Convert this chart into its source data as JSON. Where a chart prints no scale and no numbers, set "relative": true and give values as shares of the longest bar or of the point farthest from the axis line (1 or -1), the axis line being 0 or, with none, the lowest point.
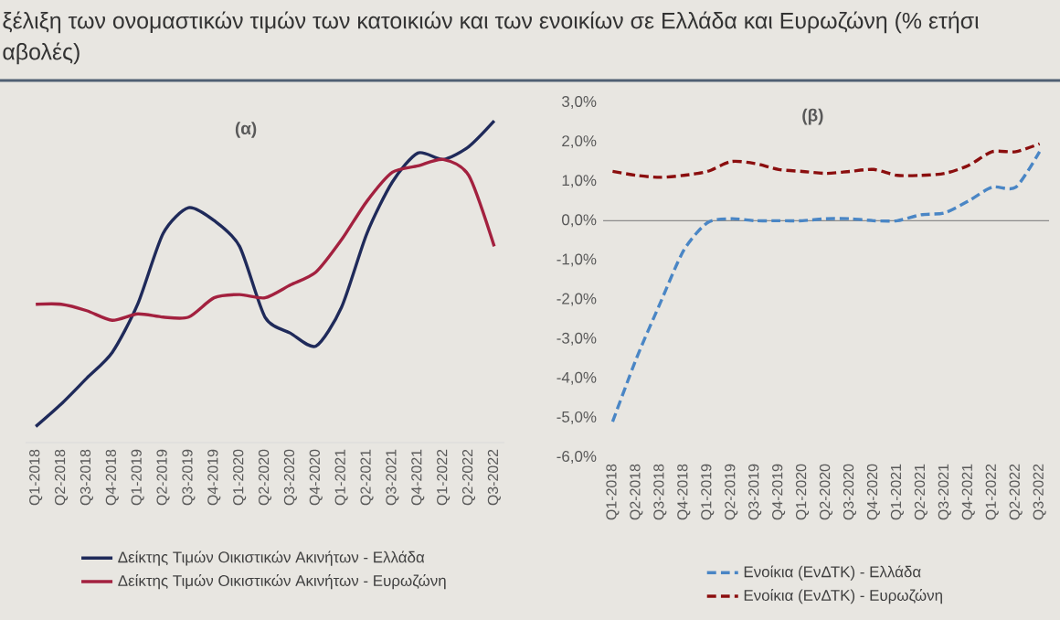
{
  "chart_data": [
    {
      "type": "line",
      "title": "ξέλιξη των ονομαστικών τιμών των κατοικιών και των ενοικίων σε Ελλάδα και Ευρωζώνη (% ετήσι",
      "subtitle": "αβολές)",
      "annotations": [
        "(α)"
      ],
      "relative": true,
      "tick_labels": "x",
      "legend": "bottom",
      "categories": [
        "Q1-2018",
        "Q2-2018",
        "Q3-2018",
        "Q4-2018",
        "Q1-2019",
        "Q2-2019",
        "Q3-2019",
        "Q4-2019",
        "Q1-2020",
        "Q2-2020",
        "Q3-2020",
        "Q4-2020",
        "Q1-2021",
        "Q2-2021",
        "Q3-2021",
        "Q4-2021",
        "Q1-2022",
        "Q2-2022",
        "Q3-2022"
      ],
      "series": [
        {
          "name": "Δείκτης Τιμών Οικιστικών Ακινήτων - Ελλάδα",
          "color": "#1f2a5a",
          "line_style": "solid",
          "values": [
            0.05,
            0.12,
            0.2,
            0.28,
            0.43,
            0.65,
            0.73,
            0.69,
            0.61,
            0.39,
            0.34,
            0.3,
            0.42,
            0.65,
            0.81,
            0.9,
            0.88,
            0.92,
            1.0
          ]
        },
        {
          "name": "Δείκτης Τιμών Οικιστικών Ακινήτων - Ευρωζώνη",
          "color": "#a3213f",
          "line_style": "solid",
          "values": [
            0.43,
            0.43,
            0.41,
            0.38,
            0.4,
            0.39,
            0.39,
            0.45,
            0.46,
            0.45,
            0.49,
            0.53,
            0.63,
            0.75,
            0.84,
            0.86,
            0.88,
            0.83,
            0.61
          ]
        }
      ]
    },
    {
      "type": "line",
      "title": "(β)",
      "legend": "bottom",
      "ylim": [
        -6,
        3
      ],
      "yticks": [
        {
          "value": -6,
          "label": "-6,0%"
        },
        {
          "value": -5,
          "label": "-5,0%"
        },
        {
          "value": -4,
          "label": "-4,0%"
        },
        {
          "value": -3,
          "label": "-3,0%"
        },
        {
          "value": -2,
          "label": "-2,0%"
        },
        {
          "value": -1,
          "label": "-1,0%"
        },
        {
          "value": 0,
          "label": "0,0%"
        },
        {
          "value": 1,
          "label": "1,0%"
        },
        {
          "value": 2,
          "label": "2,0%"
        },
        {
          "value": 3,
          "label": "3,0%"
        }
      ],
      "categories": [
        "Q1-2018",
        "Q2-2018",
        "Q3-2018",
        "Q4-2018",
        "Q1-2019",
        "Q2-2019",
        "Q3-2019",
        "Q4-2019",
        "Q1-2020",
        "Q2-2020",
        "Q3-2020",
        "Q4-2020",
        "Q1-2021",
        "Q2-2021",
        "Q3-2021",
        "Q4-2021",
        "Q1-2022",
        "Q2-2022",
        "Q3-2022"
      ],
      "series": [
        {
          "name": "Ενοίκια (ΕνΔΤΚ) - Ελλάδα",
          "color": "#4a86c5",
          "line_style": "dashed",
          "values": [
            -5.1,
            -3.5,
            -2.1,
            -0.75,
            -0.05,
            0.05,
            0.0,
            0.0,
            0.0,
            0.05,
            0.05,
            0.0,
            0.0,
            0.15,
            0.2,
            0.5,
            0.85,
            0.85,
            1.75
          ]
        },
        {
          "name": "Ενοίκια (ΕνΔΤΚ) - Ευρωζώνη",
          "color": "#8b0e0e",
          "line_style": "dashed",
          "values": [
            1.25,
            1.15,
            1.1,
            1.15,
            1.25,
            1.5,
            1.45,
            1.3,
            1.25,
            1.2,
            1.25,
            1.3,
            1.15,
            1.15,
            1.2,
            1.4,
            1.75,
            1.75,
            1.95
          ]
        }
      ]
    }
  ]
}
